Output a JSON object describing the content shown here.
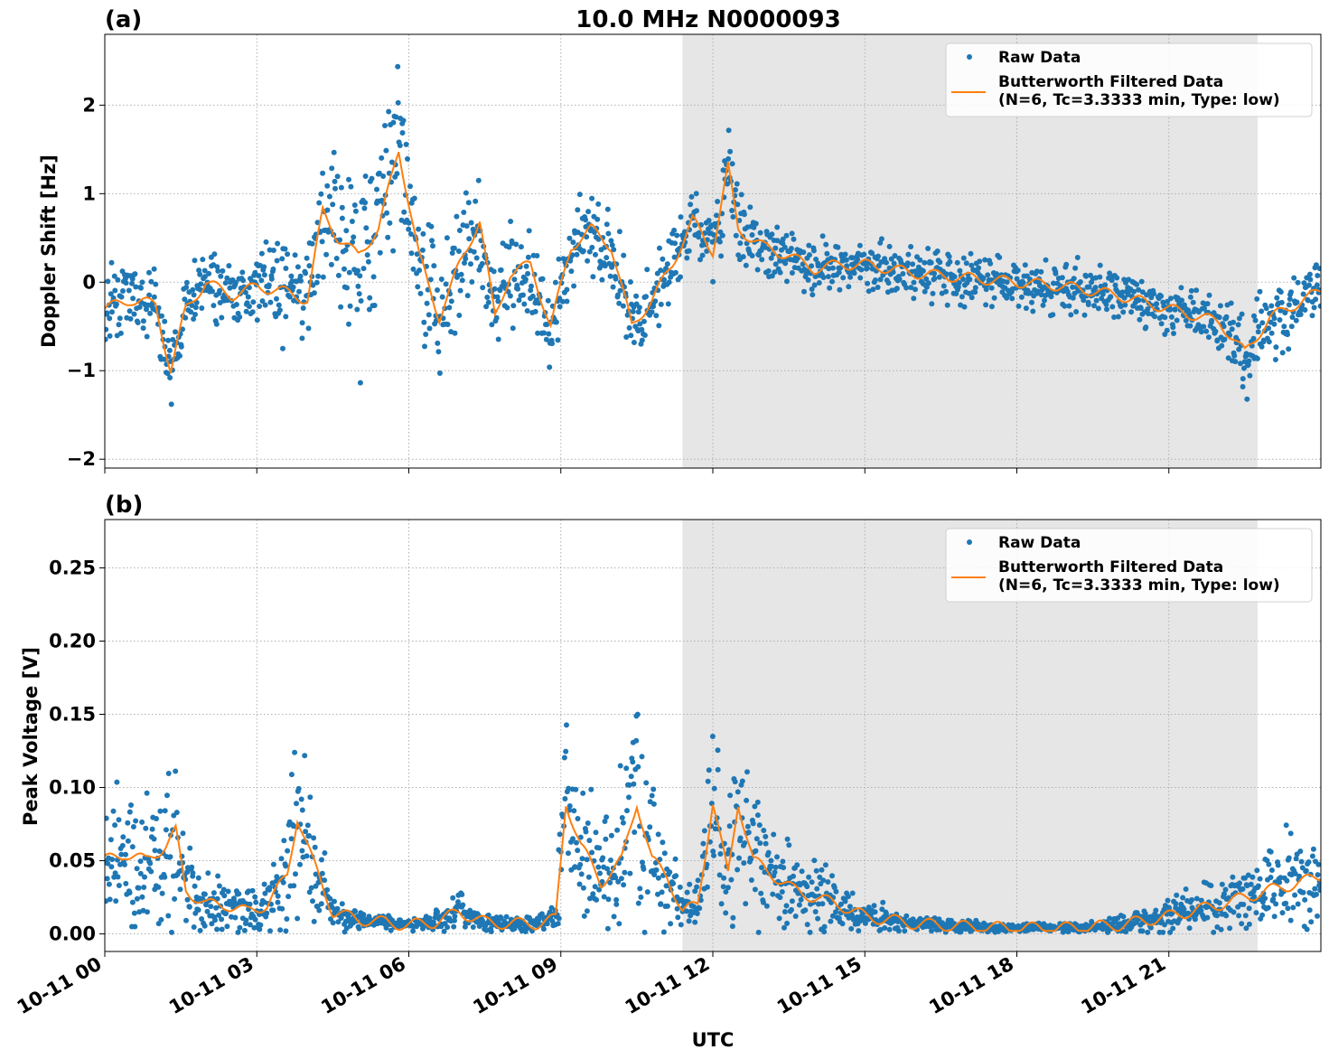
{
  "figure": {
    "title": "10.0 MHz N0000093",
    "xlabel": "UTC",
    "x_tick_labels": [
      "10-11 00",
      "10-11 03",
      "10-11 06",
      "10-11 09",
      "10-11 12",
      "10-11 15",
      "10-11 18",
      "10-11 21"
    ],
    "legend": {
      "raw": "Raw Data",
      "filtered_line1": "Butterworth Filtered Data",
      "filtered_line2": "(N=6, Tc=3.3333 min, Type: low)"
    }
  },
  "colors": {
    "raw": "#1f77b4",
    "filtered": "#ff7f0e",
    "shade": "#e6e6e6",
    "grid": "#b0b0b0"
  },
  "chart_data": [
    {
      "type": "scatter",
      "panel_label": "(a)",
      "ylabel": "Doppler Shift [Hz]",
      "y_tick_labels": [
        "−2",
        "−1",
        "0",
        "1",
        "2"
      ],
      "y_ticks": [
        -2,
        -1,
        0,
        1,
        2
      ],
      "xlim_hours": [
        0,
        24
      ],
      "ylim": [
        -2.1,
        2.8
      ],
      "grid": true,
      "legend_position": "upper right",
      "shaded_region_hours": [
        11.4,
        22.75
      ],
      "series": [
        {
          "name": "Raw Data",
          "style": "points",
          "x_hours": [
            0,
            0.5,
            1,
            1.3,
            1.6,
            2,
            2.5,
            3,
            3.5,
            4,
            4.3,
            4.6,
            5,
            5.4,
            5.8,
            6.2,
            6.6,
            7,
            7.4,
            7.7,
            8,
            8.4,
            8.8,
            9.2,
            9.6,
            10,
            10.4,
            10.8,
            11.2,
            11.6,
            12,
            12.3,
            12.5,
            13,
            13.5,
            14,
            14.5,
            15,
            16,
            17,
            18,
            19,
            20,
            21,
            22,
            22.5,
            23,
            23.5,
            24
          ],
          "y": [
            -0.3,
            -0.2,
            -0.25,
            -1,
            -0.3,
            0,
            -0.15,
            -0.05,
            -0.1,
            -0.2,
            0.8,
            0.5,
            0.3,
            0.6,
            1.5,
            0.3,
            -0.4,
            0.2,
            0.7,
            -0.4,
            0.1,
            0.2,
            -0.5,
            0.4,
            0.6,
            0.4,
            -0.5,
            -0.2,
            0.2,
            0.7,
            0.35,
            1.3,
            0.6,
            0.4,
            0.3,
            0.15,
            0.2,
            0.2,
            0.1,
            0.05,
            0,
            -0.05,
            -0.15,
            -0.3,
            -0.45,
            -0.8,
            -0.4,
            -0.25,
            -0.1
          ],
          "spread": [
            0.35,
            0.3,
            0.3,
            0.3,
            0.3,
            0.3,
            0.3,
            0.3,
            0.4,
            0.4,
            0.7,
            0.8,
            0.8,
            0.7,
            0.6,
            0.6,
            0.5,
            0.5,
            0.5,
            0.4,
            0.5,
            0.5,
            0.4,
            0.3,
            0.3,
            0.35,
            0.3,
            0.3,
            0.3,
            0.3,
            0.3,
            0.4,
            0.35,
            0.25,
            0.2,
            0.2,
            0.2,
            0.2,
            0.2,
            0.2,
            0.2,
            0.2,
            0.2,
            0.2,
            0.25,
            0.35,
            0.3,
            0.3,
            0.3
          ]
        },
        {
          "name": "Butterworth Filtered Data",
          "style": "line",
          "x_hours": [
            0,
            0.5,
            1,
            1.3,
            1.6,
            2,
            2.5,
            3,
            3.5,
            4,
            4.3,
            4.6,
            5,
            5.4,
            5.8,
            6.2,
            6.6,
            7,
            7.4,
            7.7,
            8,
            8.4,
            8.8,
            9.2,
            9.6,
            10,
            10.4,
            10.8,
            11.2,
            11.6,
            12,
            12.3,
            12.5,
            13,
            13.5,
            14,
            14.5,
            15,
            16,
            17,
            18,
            19,
            20,
            21,
            22,
            22.5,
            23,
            23.5,
            24
          ],
          "y": [
            -0.3,
            -0.2,
            -0.25,
            -1,
            -0.3,
            0,
            -0.15,
            -0.05,
            -0.1,
            -0.2,
            0.8,
            0.5,
            0.3,
            0.6,
            1.5,
            0.3,
            -0.4,
            0.2,
            0.7,
            -0.4,
            0.1,
            0.2,
            -0.5,
            0.4,
            0.6,
            0.4,
            -0.5,
            -0.2,
            0.2,
            0.7,
            0.35,
            1.3,
            0.6,
            0.4,
            0.3,
            0.15,
            0.2,
            0.2,
            0.1,
            0.05,
            0,
            -0.05,
            -0.15,
            -0.3,
            -0.45,
            -0.8,
            -0.4,
            -0.25,
            -0.1
          ]
        }
      ]
    },
    {
      "type": "scatter",
      "panel_label": "(b)",
      "ylabel": "Peak Voltage [V]",
      "y_tick_labels": [
        "0.00",
        "0.05",
        "0.10",
        "0.15",
        "0.20",
        "0.25"
      ],
      "y_ticks": [
        0,
        0.05,
        0.1,
        0.15,
        0.2,
        0.25
      ],
      "xlim_hours": [
        0,
        24
      ],
      "ylim": [
        -0.012,
        0.283
      ],
      "grid": true,
      "legend_position": "upper right",
      "shaded_region_hours": [
        11.4,
        22.75
      ],
      "series": [
        {
          "name": "Raw Data",
          "style": "points",
          "x_hours": [
            0,
            0.4,
            0.8,
            1.2,
            1.4,
            1.6,
            2,
            2.4,
            2.8,
            3.2,
            3.6,
            3.8,
            4.1,
            4.5,
            5,
            5.5,
            6,
            6.5,
            7,
            7.5,
            8,
            8.5,
            8.9,
            9.1,
            9.4,
            9.8,
            10.2,
            10.5,
            10.8,
            11.1,
            11.4,
            11.7,
            12,
            12.3,
            12.5,
            12.8,
            13.2,
            13.6,
            14,
            14.5,
            15,
            16,
            17,
            18,
            19,
            20,
            21,
            22,
            23,
            23.6,
            24
          ],
          "y": [
            0.05,
            0.055,
            0.05,
            0.06,
            0.07,
            0.03,
            0.02,
            0.02,
            0.015,
            0.02,
            0.04,
            0.08,
            0.05,
            0.015,
            0.01,
            0.008,
            0.006,
            0.008,
            0.015,
            0.008,
            0.007,
            0.007,
            0.01,
            0.09,
            0.06,
            0.035,
            0.05,
            0.09,
            0.05,
            0.04,
            0.015,
            0.02,
            0.09,
            0.04,
            0.09,
            0.05,
            0.04,
            0.03,
            0.025,
            0.02,
            0.012,
            0.007,
            0.005,
            0.004,
            0.004,
            0.006,
            0.012,
            0.02,
            0.03,
            0.035,
            0.04
          ],
          "spread": [
            0.035,
            0.035,
            0.035,
            0.04,
            0.045,
            0.02,
            0.015,
            0.015,
            0.01,
            0.015,
            0.03,
            0.05,
            0.03,
            0.008,
            0.005,
            0.004,
            0.003,
            0.005,
            0.01,
            0.005,
            0.004,
            0.004,
            0.006,
            0.06,
            0.04,
            0.03,
            0.04,
            0.06,
            0.035,
            0.03,
            0.01,
            0.015,
            0.05,
            0.03,
            0.05,
            0.035,
            0.025,
            0.02,
            0.02,
            0.015,
            0.008,
            0.004,
            0.003,
            0.002,
            0.002,
            0.004,
            0.008,
            0.015,
            0.02,
            0.025,
            0.03
          ]
        },
        {
          "name": "Butterworth Filtered Data",
          "style": "line",
          "x_hours": [
            0,
            0.4,
            0.8,
            1.2,
            1.4,
            1.6,
            2,
            2.4,
            2.8,
            3.2,
            3.6,
            3.8,
            4.1,
            4.5,
            5,
            5.5,
            6,
            6.5,
            7,
            7.5,
            8,
            8.5,
            8.9,
            9.1,
            9.4,
            9.8,
            10.2,
            10.5,
            10.8,
            11.1,
            11.4,
            11.7,
            12,
            12.3,
            12.5,
            12.8,
            13.2,
            13.6,
            14,
            14.5,
            15,
            16,
            17,
            18,
            19,
            20,
            21,
            22,
            23,
            23.6,
            24
          ],
          "y": [
            0.05,
            0.055,
            0.05,
            0.06,
            0.07,
            0.03,
            0.02,
            0.02,
            0.015,
            0.02,
            0.04,
            0.08,
            0.05,
            0.015,
            0.01,
            0.008,
            0.006,
            0.008,
            0.015,
            0.008,
            0.007,
            0.007,
            0.01,
            0.09,
            0.06,
            0.035,
            0.05,
            0.09,
            0.05,
            0.04,
            0.015,
            0.02,
            0.09,
            0.04,
            0.09,
            0.05,
            0.04,
            0.03,
            0.025,
            0.02,
            0.012,
            0.007,
            0.005,
            0.004,
            0.004,
            0.006,
            0.012,
            0.02,
            0.03,
            0.035,
            0.04
          ]
        }
      ]
    }
  ]
}
